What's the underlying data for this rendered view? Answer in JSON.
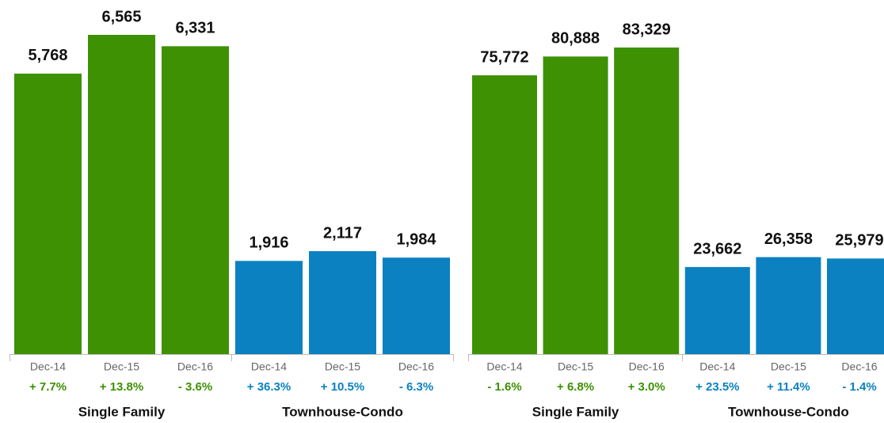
{
  "chart_data": [
    {
      "type": "bar",
      "series": [
        {
          "name": "Single Family",
          "color": "#3d9103",
          "categories": [
            "Dec-14",
            "Dec-15",
            "Dec-16"
          ],
          "values": [
            5768,
            6565,
            6331
          ],
          "value_labels": [
            "5,768",
            "6,565",
            "6,331"
          ],
          "changes": [
            7.7,
            13.8,
            -3.6
          ],
          "change_labels": [
            "+ 7.7%",
            "+ 13.8%",
            "- 3.6%"
          ]
        },
        {
          "name": "Townhouse-Condo",
          "color": "#0b81c1",
          "categories": [
            "Dec-14",
            "Dec-15",
            "Dec-16"
          ],
          "values": [
            1916,
            2117,
            1984
          ],
          "value_labels": [
            "1,916",
            "2,117",
            "1,984"
          ],
          "changes": [
            36.3,
            10.5,
            -6.3
          ],
          "change_labels": [
            "+ 36.3%",
            "+ 10.5%",
            "- 6.3%"
          ]
        }
      ]
    },
    {
      "type": "bar",
      "series": [
        {
          "name": "Single Family",
          "color": "#3d9103",
          "categories": [
            "Dec-14",
            "Dec-15",
            "Dec-16"
          ],
          "values": [
            75772,
            80888,
            83329
          ],
          "value_labels": [
            "75,772",
            "80,888",
            "83,329"
          ],
          "changes": [
            -1.6,
            6.8,
            3.0
          ],
          "change_labels": [
            "- 1.6%",
            "+ 6.8%",
            "+ 3.0%"
          ]
        },
        {
          "name": "Townhouse-Condo",
          "color": "#0b81c1",
          "categories": [
            "Dec-14",
            "Dec-15",
            "Dec-16"
          ],
          "values": [
            23662,
            26358,
            25979
          ],
          "value_labels": [
            "23,662",
            "26,358",
            "25,979"
          ],
          "changes": [
            23.5,
            11.4,
            -1.4
          ],
          "change_labels": [
            "+ 23.5%",
            "+ 11.4%",
            "- 1.4%"
          ]
        }
      ]
    }
  ]
}
